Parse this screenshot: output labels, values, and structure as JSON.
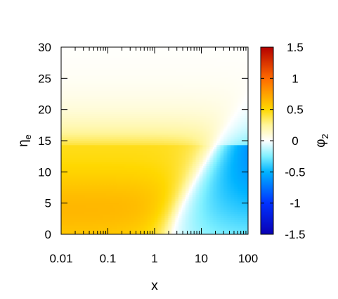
{
  "chart_data": {
    "type": "heatmap",
    "x_scale": "log",
    "xlim": [
      0.01,
      100
    ],
    "ylim": [
      0,
      30
    ],
    "x_ticks": [
      0.01,
      0.1,
      1,
      10,
      100
    ],
    "x_tick_labels": [
      "0.01",
      "0.1",
      "1",
      "10",
      "100"
    ],
    "y_ticks": [
      0,
      5,
      10,
      15,
      20,
      25,
      30
    ],
    "y_tick_labels": [
      "0",
      "5",
      "10",
      "15",
      "20",
      "25",
      "30"
    ],
    "xlabel": "x",
    "ylabel": "η",
    "ylabel_subscript": "e",
    "colorbar": {
      "label": "φ",
      "label_subscript": "2",
      "range": [
        -1.5,
        1.5
      ],
      "ticks": [
        -1.5,
        -1,
        -0.5,
        0,
        0.5,
        1,
        1.5
      ],
      "tick_labels": [
        "-1.5",
        "-1",
        "-0.5",
        "0",
        "0.5",
        "1",
        "1.5"
      ],
      "colormap": [
        {
          "value": -1.5,
          "color": "#0a00b4"
        },
        {
          "value": -1.0,
          "color": "#0032ff"
        },
        {
          "value": -0.5,
          "color": "#00b4ff"
        },
        {
          "value": -0.25,
          "color": "#80f0ff"
        },
        {
          "value": 0,
          "color": "#ffffff"
        },
        {
          "value": 0.25,
          "color": "#fff59a"
        },
        {
          "value": 0.5,
          "color": "#ffd800"
        },
        {
          "value": 1.0,
          "color": "#ff6a00"
        },
        {
          "value": 1.5,
          "color": "#b40000"
        }
      ]
    },
    "grid": false,
    "field_samples": [
      {
        "x": 0.01,
        "y": 5,
        "value": 0.62
      },
      {
        "x": 0.1,
        "y": 12,
        "value": 0.5
      },
      {
        "x": 1,
        "y": 2,
        "value": 0.6
      },
      {
        "x": 3,
        "y": 1,
        "value": 0
      },
      {
        "x": 20,
        "y": 5,
        "value": -0.45
      },
      {
        "x": 80,
        "y": 11,
        "value": -0.8
      },
      {
        "x": 1,
        "y": 20,
        "value": 0.08
      },
      {
        "x": 1,
        "y": 29,
        "value": 0
      }
    ]
  }
}
